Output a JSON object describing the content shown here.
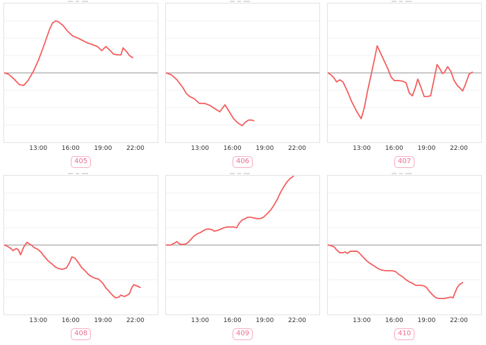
{
  "styles": {
    "background": "#ffffff",
    "line_color": "#f45d5d",
    "zero_line_color": "#a6a6a6",
    "grid_color": "#f2f2f2",
    "border_color": "#e2e2e2",
    "tick_color": "#333333",
    "badge_border_color": "#f8a9be",
    "badge_text_color": "#ec6e96"
  },
  "chart_data": {
    "type": "line",
    "layout": {
      "rows": 2,
      "cols": 3,
      "grid": "horizontal-only",
      "legend": false,
      "title": ""
    },
    "x_axis": {
      "tick_labels": [
        "13:00",
        "16:00",
        "19:00",
        "22:00"
      ],
      "tick_hours": [
        13,
        16,
        19,
        22
      ],
      "range_hours": [
        9.77,
        24.13
      ]
    },
    "y_axis": {
      "tick_labels_visible": false,
      "range": [
        -1,
        1
      ],
      "zero_line": 0
    },
    "charts": [
      {
        "label": "405",
        "x_hours": [
          9.8,
          10.2,
          10.7,
          11.2,
          11.6,
          12.0,
          12.5,
          13.0,
          13.5,
          14.0,
          14.3,
          14.6,
          14.9,
          15.3,
          15.7,
          16.2,
          16.7,
          17.2,
          17.6,
          18.0,
          18.5,
          18.9,
          19.3,
          19.7,
          20.0,
          20.4,
          20.7,
          20.9,
          21.2,
          21.5,
          21.8
        ],
        "y": [
          0,
          -0.02,
          -0.09,
          -0.17,
          -0.18,
          -0.11,
          0.02,
          0.19,
          0.4,
          0.62,
          0.72,
          0.75,
          0.73,
          0.68,
          0.6,
          0.53,
          0.5,
          0.46,
          0.43,
          0.41,
          0.38,
          0.32,
          0.38,
          0.32,
          0.27,
          0.26,
          0.26,
          0.36,
          0.31,
          0.25,
          0.22
        ]
      },
      {
        "label": "406",
        "x_hours": [
          9.8,
          10.3,
          10.8,
          11.3,
          11.7,
          12.0,
          12.4,
          12.9,
          13.4,
          13.9,
          14.3,
          14.8,
          15.1,
          15.3,
          15.7,
          16.1,
          16.5,
          16.9,
          17.2,
          17.5,
          17.8,
          18.0
        ],
        "y": [
          0,
          -0.03,
          -0.1,
          -0.2,
          -0.3,
          -0.34,
          -0.37,
          -0.44,
          -0.44,
          -0.47,
          -0.51,
          -0.56,
          -0.5,
          -0.46,
          -0.56,
          -0.66,
          -0.72,
          -0.76,
          -0.71,
          -0.68,
          -0.68,
          -0.69
        ]
      },
      {
        "label": "407",
        "x_hours": [
          9.8,
          10.1,
          10.4,
          10.6,
          10.9,
          11.2,
          11.6,
          12.0,
          12.5,
          12.9,
          13.2,
          13.5,
          13.8,
          14.1,
          14.4,
          14.7,
          15.0,
          15.4,
          15.7,
          16.0,
          16.4,
          16.8,
          17.1,
          17.4,
          17.7,
          18.0,
          18.2,
          18.5,
          18.8,
          19.1,
          19.4,
          19.7,
          20.0,
          20.3,
          20.5,
          20.7,
          21.0,
          21.3,
          21.6,
          21.9,
          22.1,
          22.4,
          22.7,
          23.0,
          23.3
        ],
        "y": [
          0,
          -0.03,
          -0.08,
          -0.13,
          -0.1,
          -0.13,
          -0.26,
          -0.41,
          -0.56,
          -0.66,
          -0.5,
          -0.26,
          -0.05,
          0.16,
          0.39,
          0.29,
          0.19,
          0.06,
          -0.06,
          -0.11,
          -0.11,
          -0.12,
          -0.14,
          -0.29,
          -0.33,
          -0.2,
          -0.09,
          -0.21,
          -0.34,
          -0.34,
          -0.33,
          -0.11,
          0.12,
          0.05,
          -0.01,
          0.01,
          0.09,
          0.02,
          -0.11,
          -0.18,
          -0.21,
          -0.26,
          -0.15,
          -0.02,
          0.01
        ]
      },
      {
        "label": "408",
        "x_hours": [
          9.8,
          10.1,
          10.4,
          10.6,
          10.9,
          11.1,
          11.3,
          11.6,
          11.9,
          12.1,
          12.3,
          12.6,
          12.9,
          13.2,
          13.5,
          13.9,
          14.3,
          14.6,
          14.9,
          15.2,
          15.6,
          15.9,
          16.1,
          16.4,
          16.7,
          17.0,
          17.4,
          17.7,
          18.0,
          18.3,
          18.6,
          19.0,
          19.3,
          19.6,
          19.9,
          20.2,
          20.5,
          20.7,
          21.0,
          21.2,
          21.5,
          21.7,
          21.9,
          22.2,
          22.5
        ],
        "y": [
          0,
          -0.02,
          -0.05,
          -0.08,
          -0.05,
          -0.07,
          -0.14,
          -0.03,
          0.04,
          0.02,
          0,
          -0.04,
          -0.06,
          -0.1,
          -0.16,
          -0.23,
          -0.28,
          -0.32,
          -0.34,
          -0.35,
          -0.33,
          -0.25,
          -0.17,
          -0.19,
          -0.25,
          -0.32,
          -0.38,
          -0.43,
          -0.46,
          -0.48,
          -0.49,
          -0.55,
          -0.62,
          -0.67,
          -0.72,
          -0.76,
          -0.75,
          -0.72,
          -0.74,
          -0.73,
          -0.7,
          -0.62,
          -0.57,
          -0.59,
          -0.61
        ]
      },
      {
        "label": "409",
        "x_hours": [
          9.8,
          10.2,
          10.6,
          10.8,
          11.0,
          11.2,
          11.5,
          11.8,
          12.1,
          12.4,
          12.7,
          13.0,
          13.3,
          13.6,
          13.8,
          14.1,
          14.3,
          14.6,
          14.9,
          15.2,
          15.5,
          15.8,
          16.1,
          16.4,
          16.6,
          16.9,
          17.2,
          17.4,
          17.7,
          18.0,
          18.3,
          18.6,
          18.9,
          19.1,
          19.3,
          19.6,
          19.9,
          20.2,
          20.5,
          20.8,
          21.1,
          21.4,
          21.7
        ],
        "y": [
          0,
          0,
          0.03,
          0.05,
          0.02,
          0.01,
          0.01,
          0.03,
          0.08,
          0.13,
          0.16,
          0.18,
          0.21,
          0.23,
          0.23,
          0.22,
          0.2,
          0.21,
          0.23,
          0.25,
          0.26,
          0.26,
          0.26,
          0.25,
          0.31,
          0.36,
          0.38,
          0.4,
          0.4,
          0.39,
          0.38,
          0.38,
          0.4,
          0.43,
          0.46,
          0.51,
          0.58,
          0.66,
          0.76,
          0.84,
          0.91,
          0.96,
          0.99
        ]
      },
      {
        "label": "410",
        "x_hours": [
          9.8,
          10.1,
          10.4,
          10.6,
          10.9,
          11.2,
          11.4,
          11.6,
          11.9,
          12.2,
          12.5,
          12.7,
          13.0,
          13.3,
          13.6,
          13.9,
          14.2,
          14.5,
          14.8,
          15.2,
          15.5,
          15.8,
          16.1,
          16.4,
          16.8,
          17.1,
          17.4,
          17.7,
          18.0,
          18.2,
          18.5,
          18.8,
          19.0,
          19.3,
          19.6,
          19.9,
          20.2,
          20.4,
          20.7,
          21.0,
          21.3,
          21.5,
          21.7,
          21.9,
          22.1,
          22.4
        ],
        "y": [
          0,
          -0.01,
          -0.03,
          -0.07,
          -0.11,
          -0.11,
          -0.1,
          -0.12,
          -0.09,
          -0.09,
          -0.09,
          -0.11,
          -0.16,
          -0.21,
          -0.25,
          -0.28,
          -0.31,
          -0.34,
          -0.36,
          -0.37,
          -0.37,
          -0.37,
          -0.38,
          -0.42,
          -0.46,
          -0.5,
          -0.53,
          -0.55,
          -0.58,
          -0.58,
          -0.58,
          -0.59,
          -0.61,
          -0.67,
          -0.72,
          -0.76,
          -0.77,
          -0.77,
          -0.77,
          -0.76,
          -0.75,
          -0.76,
          -0.68,
          -0.61,
          -0.57,
          -0.54
        ]
      }
    ]
  }
}
